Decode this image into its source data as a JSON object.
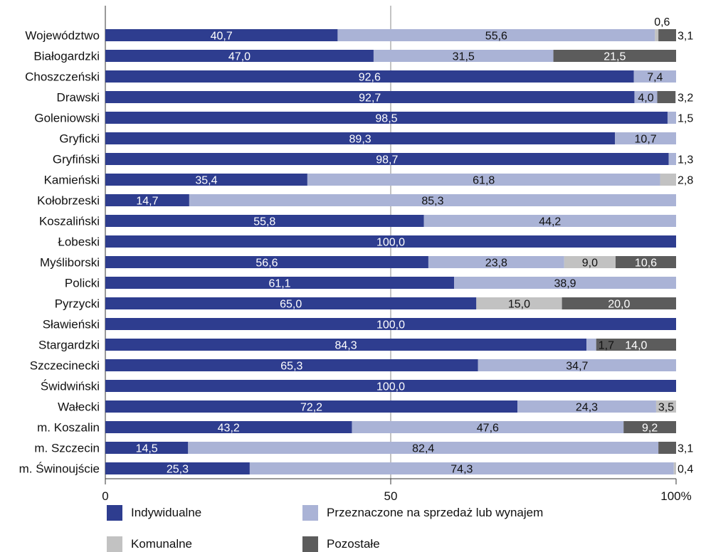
{
  "chart_data": {
    "type": "bar",
    "orientation": "horizontal",
    "stacked": true,
    "percent": true,
    "categories": [
      "Województwo",
      "Białogardzki",
      "Choszczeński",
      "Drawski",
      "Goleniowski",
      "Gryficki",
      "Gryfiński",
      "Kamieński",
      "Kołobrzeski",
      "Koszaliński",
      "Łobeski",
      "Myśliborski",
      "Policki",
      "Pyrzycki",
      "Sławieński",
      "Stargardzki",
      "Szczecinecki",
      "Świdwiński",
      "Wałecki",
      "m. Koszalin",
      "m. Szczecin",
      "m. Świnoujście"
    ],
    "series": [
      {
        "name": "Indywidualne",
        "color": "#2e3d8f",
        "values": [
          40.7,
          47.0,
          92.6,
          92.7,
          98.5,
          89.3,
          98.7,
          35.4,
          14.7,
          55.8,
          100.0,
          56.6,
          61.1,
          65.0,
          100.0,
          84.3,
          65.3,
          100.0,
          72.2,
          43.2,
          14.5,
          25.3
        ],
        "labels": [
          "40,7",
          "47,0",
          "92,6",
          "92,7",
          "98,5",
          "89,3",
          "98,7",
          "35,4",
          "14,7",
          "55,8",
          "100,0",
          "56,6",
          "61,1",
          "65,0",
          "100,0",
          "84,3",
          "65,3",
          "100,0",
          "72,2",
          "43,2",
          "14,5",
          "25,3"
        ]
      },
      {
        "name": "Przeznaczone na sprzedaż lub wynajem",
        "color": "#aab3d6",
        "values": [
          55.6,
          31.5,
          7.4,
          4.0,
          1.5,
          10.7,
          1.3,
          61.8,
          85.3,
          44.2,
          0,
          23.8,
          38.9,
          0,
          0,
          1.7,
          34.7,
          0,
          24.3,
          47.6,
          82.4,
          74.3
        ],
        "labels": [
          "55,6",
          "31,5",
          "7,4",
          "4,0",
          "1,5",
          "10,7",
          "1,3",
          "61,8",
          "85,3",
          "44,2",
          "",
          "23,8",
          "38,9",
          "",
          "",
          "1,7",
          "34,7",
          "",
          "24,3",
          "47,6",
          "82,4",
          "74,3"
        ]
      },
      {
        "name": "Komunalne",
        "color": "#c2c2c2",
        "values": [
          0.6,
          0,
          0,
          0,
          0,
          0,
          0,
          2.8,
          0,
          0,
          0,
          9.0,
          0,
          15.0,
          0,
          0,
          0,
          0,
          3.5,
          0,
          0,
          0.4
        ],
        "labels": [
          "0,6",
          "",
          "",
          "",
          "",
          "",
          "",
          "2,8",
          "",
          "",
          "",
          "9,0",
          "",
          "15,0",
          "",
          "",
          "",
          "",
          "3,5",
          "",
          "",
          "0,4"
        ]
      },
      {
        "name": "Pozostałe",
        "color": "#5c5c5c",
        "values": [
          3.1,
          21.5,
          0,
          3.2,
          0,
          0,
          0,
          0,
          0,
          0,
          0,
          10.6,
          0,
          20.0,
          0,
          14.0,
          0,
          0,
          0,
          9.2,
          3.1,
          0
        ],
        "labels": [
          "3,1",
          "21,5",
          "",
          "3,2",
          "",
          "",
          "",
          "",
          "",
          "",
          "",
          "10,6",
          "",
          "20,0",
          "",
          "14,0",
          "",
          "",
          "",
          "9,2",
          "3,1",
          ""
        ]
      }
    ],
    "xlim": [
      0,
      100
    ],
    "xticks": [
      "0",
      "50",
      "100%"
    ],
    "title": "",
    "xlabel": "",
    "ylabel": "",
    "grid": "vertical line at 50",
    "legend_position": "bottom"
  }
}
